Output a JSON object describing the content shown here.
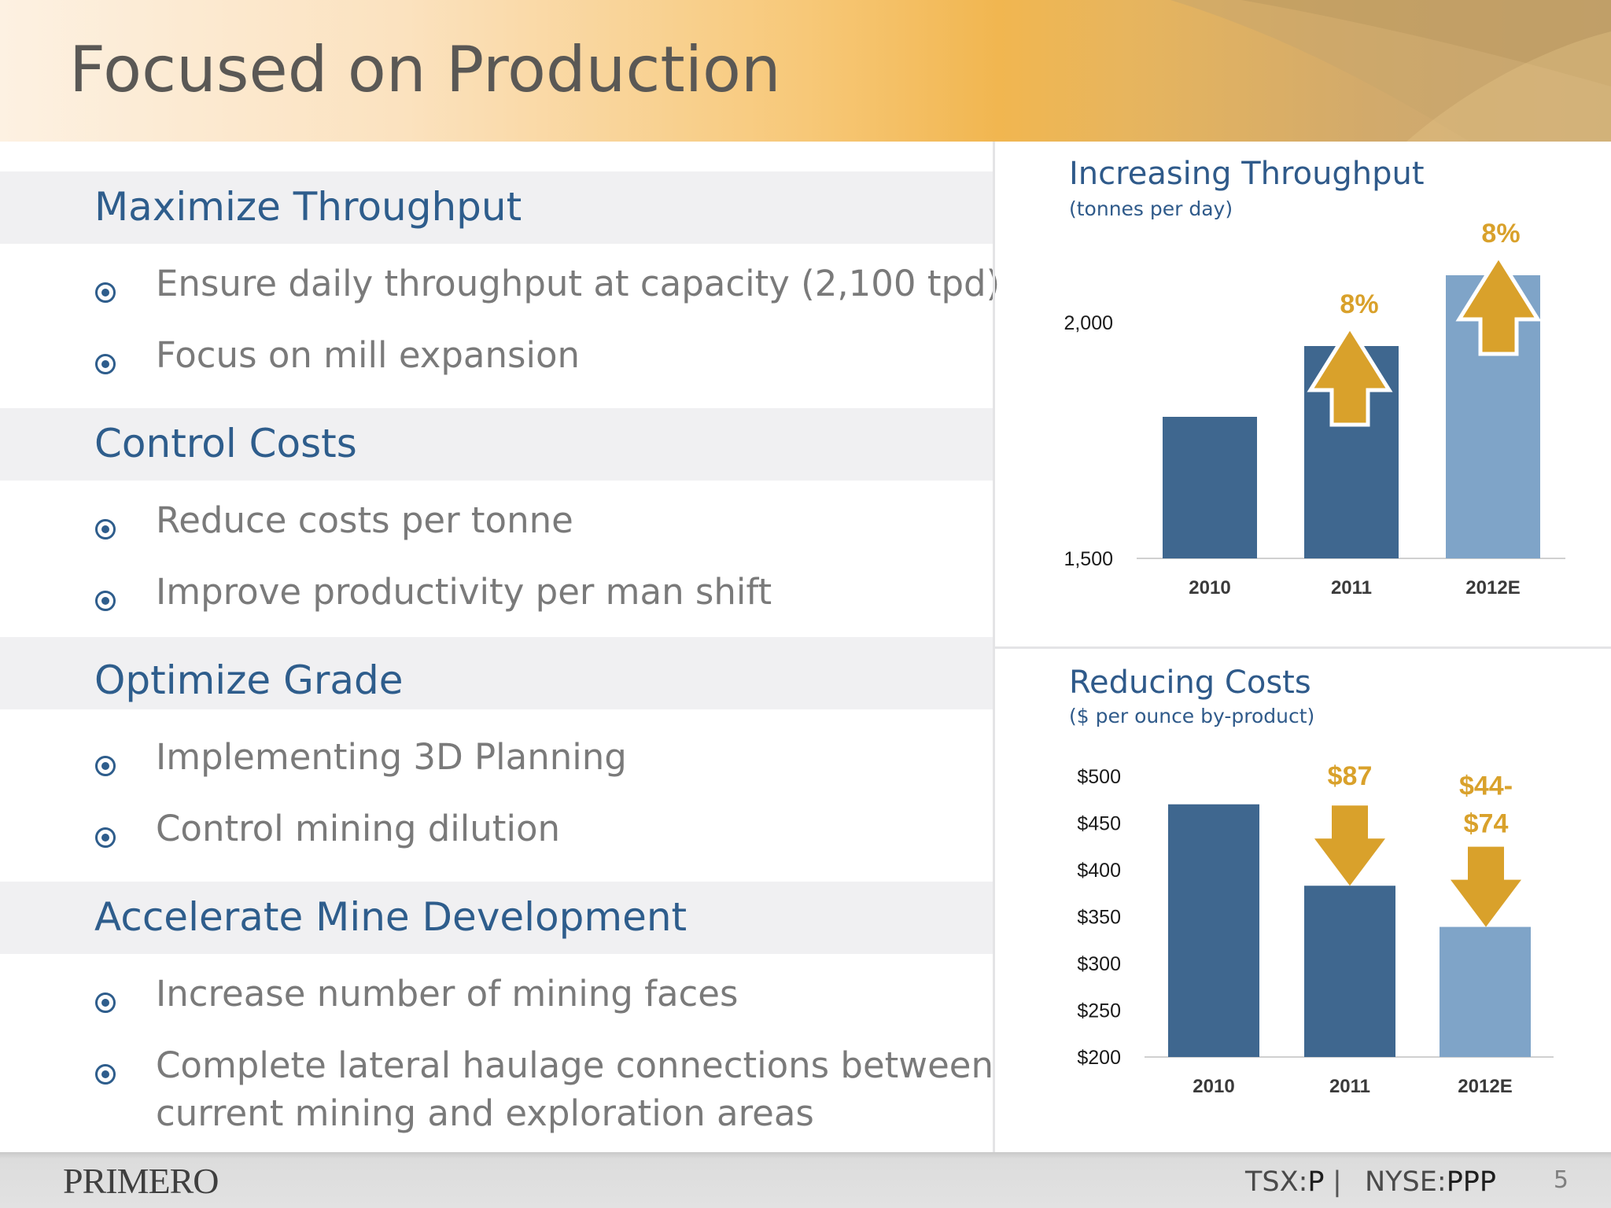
{
  "slide": {
    "title": "Focused on Production",
    "page_number": "5"
  },
  "sections": [
    {
      "title": "Maximize Throughput",
      "bullets": [
        {
          "text": "Ensure daily throughput at capacity (2,100 tpd)"
        },
        {
          "text": "Focus on mill expansion"
        }
      ]
    },
    {
      "title": "Control Costs",
      "bullets": [
        {
          "text": "Reduce costs per tonne"
        },
        {
          "text": "Improve productivity per man shift"
        }
      ]
    },
    {
      "title": "Optimize Grade",
      "bullets": [
        {
          "text": "Implementing 3D Planning"
        },
        {
          "text": "Control mining dilution"
        }
      ]
    },
    {
      "title": "Accelerate Mine Development",
      "bullets": [
        {
          "text": "Increase number of mining faces"
        },
        {
          "text": "Complete lateral haulage connections between",
          "text2": "current mining and exploration areas"
        }
      ]
    }
  ],
  "colors": {
    "title": "#5a5855",
    "section_title": "#2e5d8c",
    "bullet_text": "#7a7a7a",
    "bar_dark": "#3f678f",
    "bar_light": "#7fa4c8",
    "accent_gold": "#d9a12b"
  },
  "chart_data": [
    {
      "type": "bar",
      "title": "Increasing Throughput",
      "subtitle": "(tonnes per day)",
      "categories": [
        "2010",
        "2011",
        "2012E"
      ],
      "values": [
        1800,
        1950,
        2100
      ],
      "ylim": [
        1500,
        2100
      ],
      "y_tick_labels": [
        "1,500",
        "2,000"
      ],
      "y_tick_values": [
        1500,
        2000
      ],
      "bar_colors": [
        "#3f678f",
        "#3f678f",
        "#7fa4c8"
      ],
      "annotations": [
        "",
        "8%",
        "8%"
      ],
      "arrow_direction": "up",
      "grid": false
    },
    {
      "type": "bar",
      "title": "Reducing Costs",
      "subtitle": "($ per ounce by-product)",
      "categories": [
        "2010",
        "2011",
        "2012E"
      ],
      "values": [
        470,
        383,
        339
      ],
      "ylim": [
        200,
        500
      ],
      "y_tick_labels": [
        "$200",
        "$250",
        "$300",
        "$350",
        "$400",
        "$450",
        "$500"
      ],
      "y_tick_values": [
        200,
        250,
        300,
        350,
        400,
        450,
        500
      ],
      "bar_colors": [
        "#3f678f",
        "#3f678f",
        "#7fa4c8"
      ],
      "annotations": [
        "",
        "$87",
        "$44-\n$74"
      ],
      "arrow_direction": "down",
      "grid": false
    }
  ],
  "footer": {
    "logo_text": "PRIMERO",
    "tsx_label": "TSX:",
    "tsx_symbol": "P",
    "separator": "|",
    "nyse_label": "NYSE:",
    "nyse_symbol": "PPP"
  }
}
